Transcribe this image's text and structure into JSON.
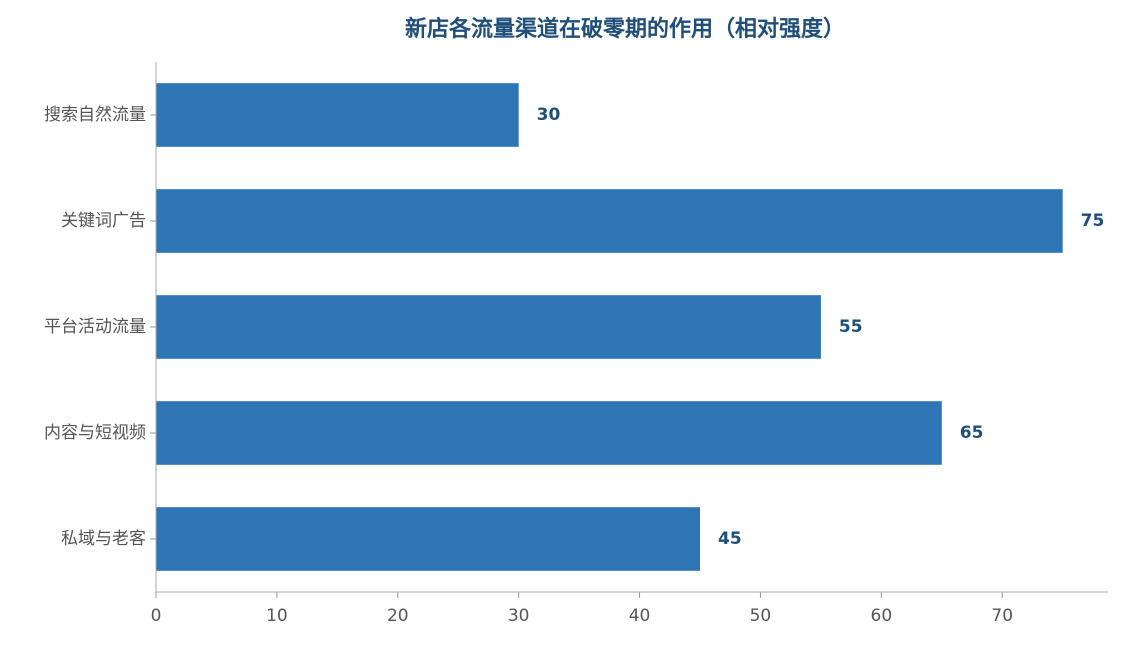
{
  "chart_data": {
    "type": "bar",
    "orientation": "horizontal",
    "title": "新店各流量渠道在破零期的作用（相对强度）",
    "categories": [
      "搜索自然流量",
      "关键词广告",
      "平台活动流量",
      "内容与短视频",
      "私域与老客"
    ],
    "values": [
      30,
      75,
      55,
      65,
      45
    ],
    "color": "#2e75b6",
    "xlim": [
      0,
      78.75
    ],
    "xticks": [
      0,
      10,
      20,
      30,
      40,
      50,
      60,
      70
    ],
    "grid": false
  }
}
